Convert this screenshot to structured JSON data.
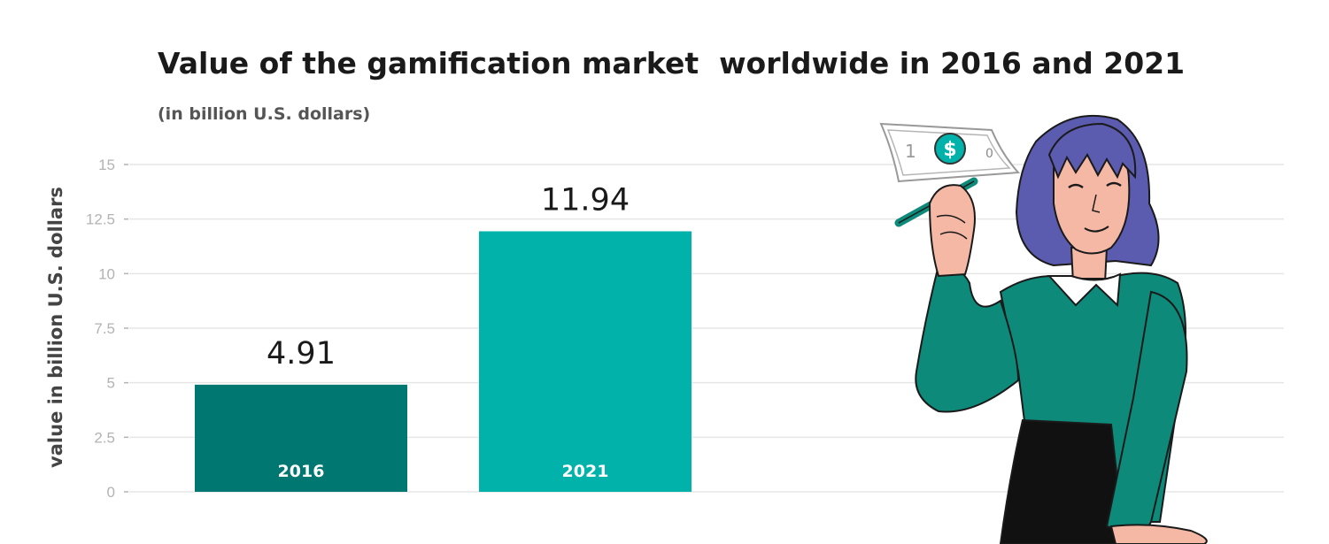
{
  "chart_data": {
    "type": "bar",
    "title": "Value of the gamification market  worldwide in 2016 and 2021",
    "subtitle": "(in billion U.S. dollars)",
    "ylabel": "value  in  billion U.S. dollars",
    "xlabel": "",
    "categories": [
      "2016",
      "2021"
    ],
    "values": [
      4.91,
      11.94
    ],
    "value_labels": [
      "4.91",
      "11.94"
    ],
    "bar_colors": [
      "#007770",
      "#00b2aa"
    ],
    "ylim": [
      0,
      15
    ],
    "yticks": [
      0,
      2.5,
      5,
      7.5,
      10,
      12.5,
      15
    ],
    "ytick_labels": [
      "0",
      "2.5",
      "5",
      "7.5",
      "10",
      "12.5",
      "15"
    ],
    "grid": true,
    "legend": "none"
  },
  "illustration": {
    "description_icon": "woman-holding-banknote-icon",
    "banknote_text": [
      "1",
      "$",
      "0"
    ],
    "colors": {
      "hair": "#5b5bb0",
      "sweater": "#0e8a7a",
      "skirt": "#111111",
      "skin": "#f4b8a5",
      "coin": "#00b2aa"
    }
  }
}
